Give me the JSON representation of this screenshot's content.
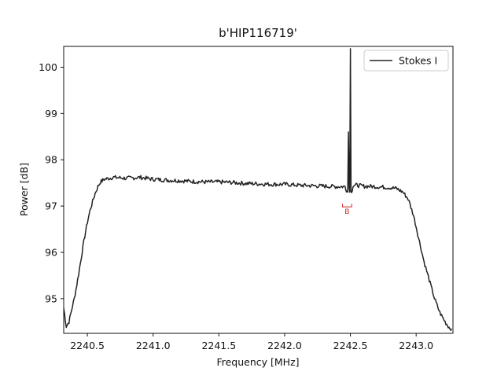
{
  "chart_data": {
    "type": "line",
    "title": "b'HIP116719'",
    "xlabel": "Frequency [MHz]",
    "ylabel": "Power [dB]",
    "xlim": [
      2240.32,
      2243.28
    ],
    "ylim": [
      94.25,
      100.45
    ],
    "xticks": [
      2240.5,
      2241.0,
      2241.5,
      2242.0,
      2242.5,
      2243.0
    ],
    "xtick_labels": [
      "2240.5",
      "2241.0",
      "2241.5",
      "2242.0",
      "2242.5",
      "2243.0"
    ],
    "yticks": [
      95,
      96,
      97,
      98,
      99,
      100
    ],
    "ytick_labels": [
      "95",
      "96",
      "97",
      "98",
      "99",
      "100"
    ],
    "legend": {
      "position": "top-right",
      "entries": [
        "Stokes I"
      ]
    },
    "grid": false,
    "series": [
      {
        "name": "Stokes I",
        "color": "#222222",
        "points": [
          [
            2240.32,
            94.8
          ],
          [
            2240.34,
            94.4
          ],
          [
            2240.36,
            94.5
          ],
          [
            2240.38,
            94.75
          ],
          [
            2240.4,
            95.0
          ],
          [
            2240.42,
            95.3
          ],
          [
            2240.44,
            95.65
          ],
          [
            2240.46,
            96.0
          ],
          [
            2240.48,
            96.35
          ],
          [
            2240.5,
            96.65
          ],
          [
            2240.52,
            96.9
          ],
          [
            2240.54,
            97.1
          ],
          [
            2240.56,
            97.28
          ],
          [
            2240.58,
            97.42
          ],
          [
            2240.6,
            97.52
          ],
          [
            2240.63,
            97.58
          ],
          [
            2240.7,
            97.62
          ],
          [
            2240.8,
            97.6
          ],
          [
            2240.9,
            97.62
          ],
          [
            2241.0,
            97.58
          ],
          [
            2241.1,
            97.56
          ],
          [
            2241.2,
            97.55
          ],
          [
            2241.3,
            97.53
          ],
          [
            2241.4,
            97.52
          ],
          [
            2241.5,
            97.52
          ],
          [
            2241.6,
            97.51
          ],
          [
            2241.7,
            97.49
          ],
          [
            2241.8,
            97.48
          ],
          [
            2241.9,
            97.47
          ],
          [
            2242.0,
            97.47
          ],
          [
            2242.1,
            97.45
          ],
          [
            2242.2,
            97.44
          ],
          [
            2242.3,
            97.43
          ],
          [
            2242.4,
            97.42
          ],
          [
            2242.46,
            97.42
          ],
          [
            2242.47,
            97.35
          ],
          [
            2242.48,
            97.3
          ],
          [
            2242.485,
            98.6
          ],
          [
            2242.49,
            97.4
          ],
          [
            2242.495,
            97.3
          ],
          [
            2242.5,
            100.4
          ],
          [
            2242.505,
            97.35
          ],
          [
            2242.51,
            97.28
          ],
          [
            2242.52,
            97.45
          ],
          [
            2242.55,
            97.45
          ],
          [
            2242.6,
            97.43
          ],
          [
            2242.7,
            97.42
          ],
          [
            2242.8,
            97.4
          ],
          [
            2242.85,
            97.38
          ],
          [
            2242.9,
            97.3
          ],
          [
            2242.94,
            97.15
          ],
          [
            2242.98,
            96.8
          ],
          [
            2243.02,
            96.3
          ],
          [
            2243.06,
            95.8
          ],
          [
            2243.1,
            95.4
          ],
          [
            2243.14,
            95.0
          ],
          [
            2243.18,
            94.7
          ],
          [
            2243.22,
            94.5
          ],
          [
            2243.25,
            94.38
          ],
          [
            2243.27,
            94.35
          ]
        ]
      }
    ],
    "annotations": [
      {
        "text": "B",
        "x_range": [
          2242.44,
          2242.51
        ],
        "y": 97.0,
        "color": "#d62728"
      }
    ]
  }
}
